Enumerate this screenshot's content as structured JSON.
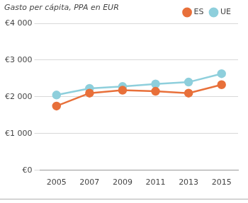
{
  "chart_data": {
    "type": "line",
    "title": "Gasto per cápita, PPA en EUR",
    "categories": [
      "2005",
      "2007",
      "2009",
      "2011",
      "2013",
      "2015"
    ],
    "series": [
      {
        "name": "ES",
        "color": "#e8703a",
        "marker": "circle",
        "values": [
          1750,
          2100,
          2180,
          2150,
          2100,
          2330
        ]
      },
      {
        "name": "UE",
        "color": "#8ecfdc",
        "marker": "circle",
        "values": [
          2050,
          2230,
          2280,
          2350,
          2400,
          2630
        ]
      }
    ],
    "ylim": [
      0,
      4000
    ],
    "yticks": [
      {
        "value": 0,
        "label": "€0"
      },
      {
        "value": 1000,
        "label": "€1 000"
      },
      {
        "value": 2000,
        "label": "€2 000"
      },
      {
        "value": 3000,
        "label": "€3 000"
      },
      {
        "value": 4000,
        "label": "€4 000"
      }
    ],
    "grid": true,
    "legend": "top-right"
  }
}
